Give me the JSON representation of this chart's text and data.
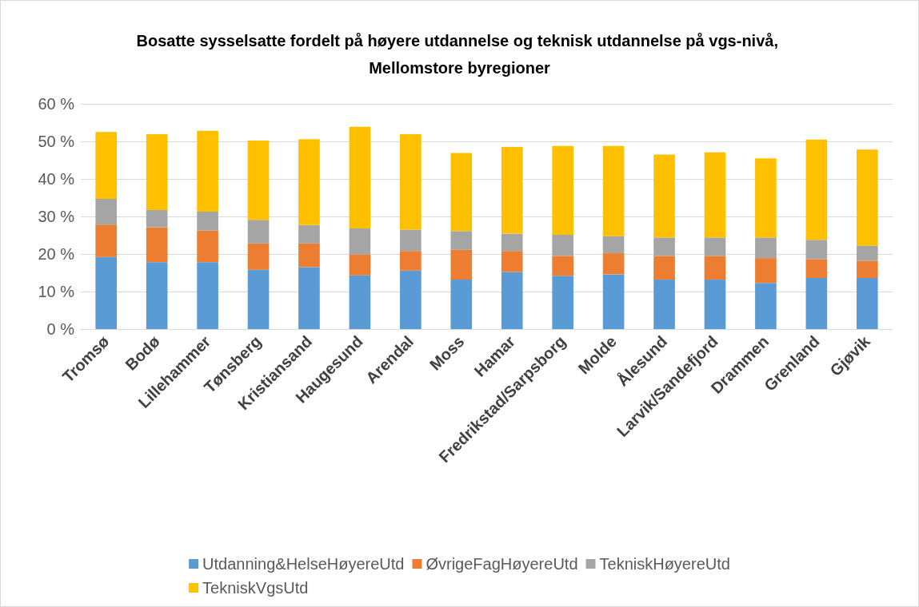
{
  "chart_data": {
    "type": "bar",
    "title": "Bosatte sysselsatte fordelt på høyere utdannelse og teknisk utdannelse på vgs-nivå, Mellomstore byregioner",
    "categories": [
      "Tromsø",
      "Bodø",
      "Lillehammer",
      "Tønsberg",
      "Kristiansand",
      "Haugesund",
      "Arendal",
      "Moss",
      "Hamar",
      "Fredrikstad/Sarpsborg",
      "Molde",
      "Ålesund",
      "Larvik/Sandefjord",
      "Drammen",
      "Grenland",
      "Gjøvik"
    ],
    "stacked": true,
    "series": [
      {
        "name": "Utdanning&HelseHøyereUtd",
        "color": "#5b9bd5",
        "values": [
          19.2,
          17.8,
          17.8,
          15.8,
          16.5,
          14.3,
          15.6,
          13.2,
          15.2,
          14.2,
          14.6,
          13.2,
          13.2,
          12.3,
          13.6,
          13.6
        ]
      },
      {
        "name": "ØvrigeFagHøyereUtd",
        "color": "#ed7d31",
        "values": [
          8.6,
          9.3,
          8.4,
          7.0,
          6.3,
          5.6,
          5.2,
          7.9,
          5.6,
          5.3,
          5.6,
          6.3,
          6.3,
          6.6,
          5.0,
          4.6
        ]
      },
      {
        "name": "TekniskHøyereUtd",
        "color": "#a5a5a5",
        "values": [
          6.9,
          4.6,
          5.1,
          6.3,
          4.9,
          6.9,
          5.7,
          5.0,
          4.6,
          5.6,
          4.6,
          4.9,
          4.9,
          5.5,
          5.2,
          4.0
        ]
      },
      {
        "name": "TekniskVgsUtd",
        "color": "#ffc000",
        "values": [
          17.8,
          20.2,
          21.5,
          21.1,
          22.9,
          27.1,
          25.4,
          20.8,
          23.1,
          23.7,
          24.0,
          22.1,
          22.7,
          21.1,
          26.7,
          25.6
        ]
      }
    ],
    "ylim": [
      0,
      60
    ],
    "yticks": [
      {
        "value": 0,
        "label": "0 %"
      },
      {
        "value": 10,
        "label": "10 %"
      },
      {
        "value": 20,
        "label": "20 %"
      },
      {
        "value": 30,
        "label": "30 %"
      },
      {
        "value": 40,
        "label": "40 %"
      },
      {
        "value": 50,
        "label": "50 %"
      },
      {
        "value": 60,
        "label": "60 %"
      }
    ],
    "grid": "y",
    "legend": "bottom"
  }
}
